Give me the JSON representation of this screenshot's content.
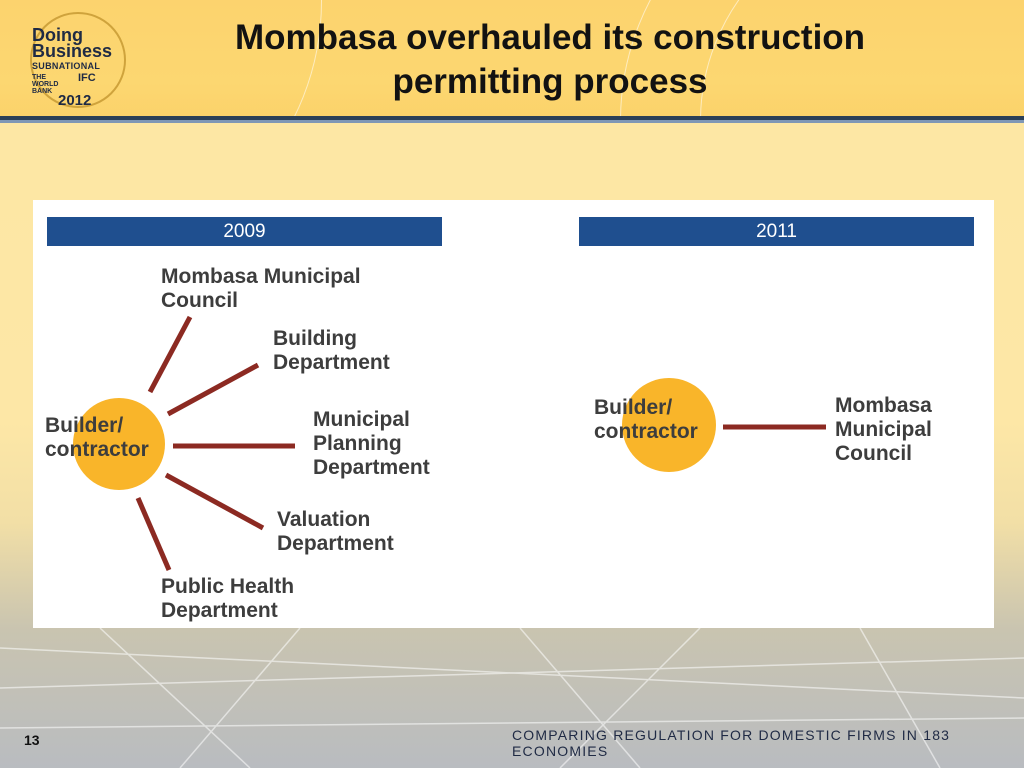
{
  "slide": {
    "title": "Mombasa overhauled its construction permitting process",
    "page_number": "13",
    "footer": "COMPARING REGULATION FOR DOMESTIC FIRMS IN 183 ECONOMIES"
  },
  "logo": {
    "line1": "Doing",
    "line2": "Business",
    "line3": "SUBNATIONAL",
    "partner1": "THE WORLD BANK",
    "partner2": "IFC",
    "year": "2012"
  },
  "diagram": {
    "left": {
      "year": "2009",
      "center": "Builder/ contractor",
      "nodes": [
        "Mombasa Municipal Council",
        "Building Department",
        "Municipal Planning Department",
        "Valuation Department",
        "Public Health Department"
      ]
    },
    "right": {
      "year": "2011",
      "center": "Builder/ contractor",
      "nodes": [
        "Mombasa Municipal Council"
      ]
    },
    "colors": {
      "year_bar": "#1f4f8f",
      "circle": "#f9b52a",
      "connector": "#8c2a22",
      "header": "#fcd36e"
    }
  }
}
